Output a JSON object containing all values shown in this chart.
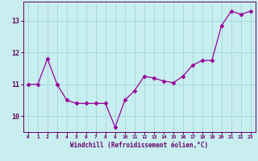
{
  "x": [
    0,
    1,
    2,
    3,
    4,
    5,
    6,
    7,
    8,
    9,
    10,
    11,
    12,
    13,
    14,
    15,
    16,
    17,
    18,
    19,
    20,
    21,
    22,
    23
  ],
  "y": [
    11.0,
    11.0,
    11.8,
    11.0,
    10.5,
    10.4,
    10.4,
    10.4,
    10.4,
    9.65,
    10.5,
    10.8,
    11.25,
    11.2,
    11.1,
    11.05,
    11.25,
    11.6,
    11.75,
    11.75,
    12.85,
    13.3,
    13.2,
    13.3
  ],
  "line_color": "#990099",
  "marker": "D",
  "marker_size": 2.5,
  "bg_color": "#c8eef0",
  "grid_color": "#a0d8d8",
  "xlabel": "Windchill (Refroidissement éolien,°C)",
  "xlabel_color": "#660066",
  "tick_color": "#660066",
  "ylim": [
    9.5,
    13.6
  ],
  "yticks": [
    10,
    11,
    12,
    13
  ],
  "xlim": [
    -0.5,
    23.5
  ],
  "xticks": [
    0,
    1,
    2,
    3,
    4,
    5,
    6,
    7,
    8,
    9,
    10,
    11,
    12,
    13,
    14,
    15,
    16,
    17,
    18,
    19,
    20,
    21,
    22,
    23
  ]
}
